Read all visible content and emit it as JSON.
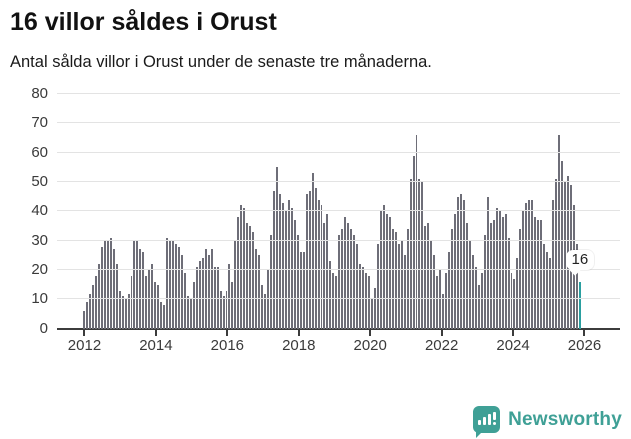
{
  "header": {
    "title": "16 villor såldes i Orust",
    "subtitle": "Antal sålda villor i Orust under de senaste tre månaderna."
  },
  "chart_data": {
    "type": "bar",
    "title": "16 villor såldes i Orust",
    "subtitle": "Antal sålda villor i Orust under de senaste tre månaderna.",
    "frequency": "monthly",
    "x_start": "2012-01",
    "x_end": "2025-12",
    "categories_note": "one bar per month, Jan 2012 through latest",
    "values": [
      6,
      9,
      12,
      15,
      18,
      22,
      28,
      30,
      30,
      31,
      27,
      22,
      13,
      11,
      10,
      12,
      18,
      30,
      30,
      27,
      26,
      18,
      20,
      22,
      16,
      15,
      9,
      8,
      31,
      30,
      30,
      29,
      28,
      25,
      19,
      11,
      10,
      16,
      21,
      23,
      24,
      27,
      25,
      27,
      21,
      21,
      13,
      11,
      13,
      22,
      16,
      30,
      38,
      42,
      41,
      36,
      35,
      33,
      27,
      25,
      15,
      12,
      20,
      32,
      47,
      55,
      46,
      43,
      40,
      44,
      41,
      37,
      32,
      26,
      26,
      46,
      47,
      53,
      48,
      44,
      42,
      36,
      39,
      23,
      19,
      18,
      32,
      34,
      38,
      36,
      34,
      32,
      29,
      22,
      21,
      19,
      18,
      10,
      14,
      29,
      40,
      42,
      39,
      38,
      34,
      33,
      29,
      30,
      25,
      34,
      51,
      59,
      66,
      51,
      50,
      35,
      36,
      30,
      25,
      18,
      20,
      12,
      19,
      26,
      34,
      39,
      45,
      46,
      44,
      36,
      30,
      25,
      21,
      15,
      19,
      32,
      45,
      36,
      37,
      41,
      40,
      38,
      39,
      31,
      19,
      17,
      24,
      34,
      40,
      43,
      44,
      44,
      38,
      37,
      37,
      29,
      26,
      24,
      44,
      51,
      66,
      57,
      50,
      52,
      49,
      42,
      29,
      16
    ],
    "highlight": {
      "index": 167,
      "value": 16,
      "label": "16",
      "color": "#2a9fa0"
    },
    "bar_color": "#6e6e78",
    "y_ticks": [
      0,
      10,
      20,
      30,
      40,
      50,
      60,
      70,
      80
    ],
    "ylim": [
      0,
      81.4
    ],
    "x_tick_years": [
      2012,
      2014,
      2016,
      2018,
      2020,
      2022,
      2024,
      2026
    ],
    "grid": true,
    "legend": "none"
  },
  "footer": {
    "brand": "Newsworthy",
    "brand_color": "#3fa096",
    "logo_icon": "newsworthy-chart-bubble-icon"
  }
}
